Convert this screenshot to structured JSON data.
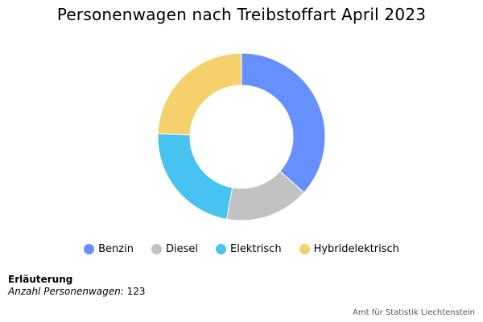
{
  "chart_data": {
    "type": "pie",
    "donut": true,
    "title": "Personenwagen nach Treibstoffart April 2023",
    "categories": [
      "Benzin",
      "Diesel",
      "Elektrisch",
      "Hybridelektrisch"
    ],
    "values": [
      45,
      20,
      28,
      30
    ],
    "colors": [
      "#6690ff",
      "#c2c2c2",
      "#48c2f0",
      "#f5d06b"
    ],
    "legend_position": "bottom"
  },
  "note": {
    "heading": "Erläuterung",
    "label": "Anzahl Personenwagen:",
    "value": "123"
  },
  "source": "Amt für Statistik Liechtenstein"
}
